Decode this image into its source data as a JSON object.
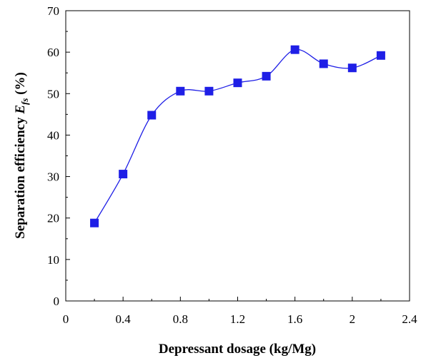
{
  "chart_data": {
    "type": "line",
    "title": "",
    "xlabel": "Depressant dosage (kg/Mg)",
    "ylabel_prefix": "Separation efficiency ",
    "ylabel_symbol": "E",
    "ylabel_subscript": "fs",
    "ylabel_suffix": " (%)",
    "xlim": [
      0,
      2.4
    ],
    "ylim": [
      0,
      70
    ],
    "xticks": [
      "0",
      "0.4",
      "0.8",
      "1.2",
      "1.6",
      "2",
      "2.4"
    ],
    "yticks": [
      "0",
      "10",
      "20",
      "30",
      "40",
      "50",
      "60",
      "70"
    ],
    "grid": false,
    "legend": "none",
    "series": [
      {
        "color": "#1f1fe6",
        "marker": "square",
        "x": [
          0.2,
          0.4,
          0.6,
          0.8,
          1.0,
          1.2,
          1.4,
          1.6,
          1.8,
          2.0,
          2.2
        ],
        "y": [
          18.8,
          30.6,
          44.8,
          50.6,
          50.6,
          52.6,
          54.2,
          60.6,
          57.2,
          56.2,
          59.2
        ]
      }
    ]
  }
}
